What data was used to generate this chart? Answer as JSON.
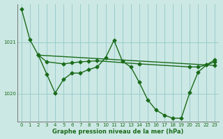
{
  "xlabel": "Graphe pression niveau de la mer (hPa)",
  "background_color": "#cce8e4",
  "grid_color": "#99cccc",
  "line_color": "#1a6b1a",
  "xlim": [
    -0.5,
    23.5
  ],
  "ylim": [
    1019.45,
    1021.75
  ],
  "yticks": [
    1020,
    1021
  ],
  "xticks": [
    0,
    1,
    2,
    3,
    4,
    5,
    6,
    7,
    8,
    9,
    10,
    11,
    12,
    13,
    14,
    15,
    16,
    17,
    18,
    19,
    20,
    21,
    22,
    23
  ],
  "line1_x": [
    0,
    1,
    2,
    23
  ],
  "line1_y": [
    1021.65,
    1021.05,
    1020.75,
    1020.55
  ],
  "line2_x": [
    2,
    3,
    5,
    6,
    7,
    8,
    9,
    14,
    20,
    21,
    22,
    23
  ],
  "line2_y": [
    1020.75,
    1020.62,
    1020.58,
    1020.6,
    1020.62,
    1020.63,
    1020.64,
    1020.58,
    1020.52,
    1020.52,
    1020.56,
    1020.62
  ],
  "line3_x": [
    2,
    3,
    4,
    5,
    6,
    7,
    8,
    9,
    10,
    11,
    12,
    13,
    14,
    15,
    16,
    17,
    18,
    19,
    20,
    21,
    22,
    23
  ],
  "line3_y": [
    1020.75,
    1020.38,
    1020.01,
    1020.28,
    1020.4,
    1020.4,
    1020.47,
    1020.52,
    1020.7,
    1021.04,
    1020.63,
    1020.52,
    1020.22,
    1019.88,
    1019.68,
    1019.58,
    1019.52,
    1019.52,
    1020.02,
    1020.42,
    1020.56,
    1020.66
  ]
}
